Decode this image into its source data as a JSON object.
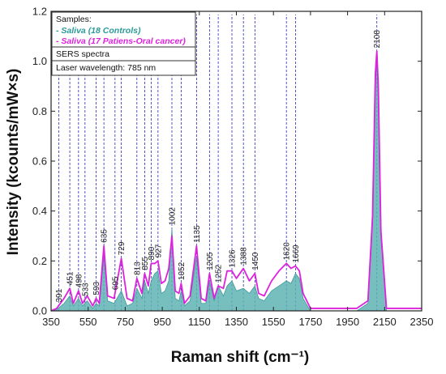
{
  "chart_data": {
    "type": "area",
    "xlabel": "Raman shift (cm⁻¹)",
    "ylabel": "Intensity (kcounts/mW×s)",
    "xlim": [
      350,
      2350
    ],
    "ylim": [
      0.0,
      1.2
    ],
    "xticks": [
      350,
      550,
      750,
      950,
      1150,
      1350,
      1550,
      1750,
      1950,
      2150,
      2350
    ],
    "yticks": [
      0.0,
      0.2,
      0.4,
      0.6,
      0.8,
      1.0,
      1.2
    ],
    "legend": {
      "position": "top-left",
      "title": "Samples:",
      "notes": [
        "SERS spectra",
        "Laser wavelength: 785 nm"
      ]
    },
    "colors": {
      "controls_fill": "#5fb3b3",
      "patients_line": "#dd22dd",
      "peak_lines": "#2b2bb8",
      "axis": "#222222"
    },
    "peak_labels": [
      "391",
      "451",
      "498",
      "533",
      "593",
      "635",
      "695",
      "729",
      "813",
      "855",
      "890",
      "927",
      "1002",
      "1052",
      "1135",
      "1205",
      "1252",
      "1326",
      "1388",
      "1450",
      "1620",
      "1669",
      "2108"
    ],
    "peak_positions": [
      391,
      451,
      498,
      533,
      593,
      635,
      695,
      729,
      813,
      855,
      890,
      927,
      1002,
      1052,
      1135,
      1205,
      1252,
      1326,
      1388,
      1450,
      1620,
      1669,
      2108
    ],
    "series": [
      {
        "name": "- Saliva (18 Controls)",
        "style": "filled area",
        "x": [
          350,
          380,
          420,
          451,
          470,
          498,
          520,
          545,
          575,
          593,
          610,
          635,
          655,
          690,
          729,
          760,
          790,
          813,
          840,
          855,
          875,
          890,
          910,
          927,
          945,
          965,
          985,
          1002,
          1020,
          1040,
          1052,
          1070,
          1100,
          1135,
          1160,
          1185,
          1205,
          1230,
          1252,
          1280,
          1300,
          1326,
          1350,
          1388,
          1420,
          1450,
          1470,
          1500,
          1540,
          1580,
          1620,
          1645,
          1669,
          1690,
          1710,
          1750,
          1800,
          2000,
          2060,
          2085,
          2100,
          2108,
          2116,
          2130,
          2160,
          2350
        ],
        "y": [
          0.0,
          0.005,
          0.03,
          0.06,
          0.02,
          0.05,
          0.02,
          0.04,
          0.01,
          0.03,
          0.02,
          0.22,
          0.04,
          0.03,
          0.08,
          0.02,
          0.03,
          0.09,
          0.05,
          0.12,
          0.07,
          0.12,
          0.15,
          0.16,
          0.07,
          0.08,
          0.12,
          0.33,
          0.05,
          0.04,
          0.08,
          0.02,
          0.04,
          0.22,
          0.03,
          0.03,
          0.12,
          0.04,
          0.1,
          0.06,
          0.1,
          0.12,
          0.08,
          0.09,
          0.07,
          0.1,
          0.05,
          0.04,
          0.08,
          0.1,
          0.12,
          0.11,
          0.15,
          0.13,
          0.05,
          0.0,
          0.0,
          0.0,
          0.03,
          0.35,
          0.9,
          1.0,
          0.85,
          0.3,
          0.0,
          0.0
        ]
      },
      {
        "name": "- Saliva (17 Patiens-Oral cancer)",
        "style": "line",
        "x": [
          350,
          380,
          420,
          451,
          470,
          498,
          520,
          545,
          575,
          593,
          610,
          635,
          655,
          690,
          729,
          760,
          790,
          813,
          840,
          855,
          875,
          890,
          910,
          927,
          945,
          965,
          985,
          1002,
          1020,
          1040,
          1052,
          1070,
          1100,
          1135,
          1160,
          1185,
          1205,
          1230,
          1252,
          1280,
          1300,
          1326,
          1350,
          1388,
          1420,
          1450,
          1470,
          1500,
          1540,
          1580,
          1620,
          1645,
          1669,
          1690,
          1710,
          1750,
          1800,
          2000,
          2060,
          2085,
          2100,
          2108,
          2116,
          2130,
          2160,
          2350
        ],
        "y": [
          0.0,
          0.01,
          0.05,
          0.09,
          0.03,
          0.08,
          0.03,
          0.06,
          0.02,
          0.05,
          0.03,
          0.26,
          0.06,
          0.05,
          0.21,
          0.05,
          0.04,
          0.13,
          0.07,
          0.15,
          0.1,
          0.19,
          0.19,
          0.2,
          0.11,
          0.12,
          0.17,
          0.3,
          0.08,
          0.07,
          0.11,
          0.03,
          0.06,
          0.26,
          0.05,
          0.04,
          0.15,
          0.05,
          0.1,
          0.09,
          0.16,
          0.16,
          0.13,
          0.17,
          0.12,
          0.15,
          0.07,
          0.06,
          0.12,
          0.16,
          0.19,
          0.17,
          0.18,
          0.16,
          0.07,
          0.01,
          0.01,
          0.01,
          0.04,
          0.38,
          0.95,
          1.04,
          0.9,
          0.32,
          0.01,
          0.01
        ]
      }
    ]
  }
}
